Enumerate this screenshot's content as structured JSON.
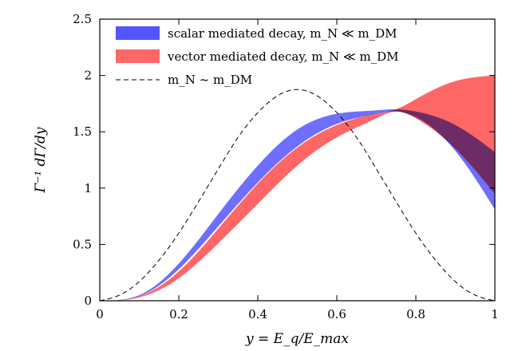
{
  "chart_data": {
    "type": "area",
    "xlabel": "y = E_q/E_max",
    "ylabel": "Γ⁻¹ dΓ/dy",
    "xlim": [
      0,
      1
    ],
    "ylim": [
      0,
      2.5
    ],
    "xticks": [
      0,
      0.2,
      0.4,
      0.6,
      0.8,
      1
    ],
    "xtick_labels": [
      "0",
      "0.2",
      "0.4",
      "0.6",
      "0.8",
      "1"
    ],
    "yticks": [
      0,
      0.5,
      1,
      1.5,
      2,
      2.5
    ],
    "ytick_labels": [
      "0",
      "0.5",
      "1",
      "1.5",
      "2",
      "2.5"
    ],
    "grid": false,
    "legend_position": "top-left",
    "x": [
      0,
      0.1,
      0.2,
      0.3,
      0.4,
      0.5,
      0.6,
      0.7,
      0.75,
      0.8,
      0.9,
      1.0
    ],
    "series": [
      {
        "name": "scalar mediated decay, m_N ≪ m_DM",
        "style": "band",
        "color": "#5555ff",
        "upper": [
          0,
          0.05,
          0.33,
          0.77,
          1.2,
          1.52,
          1.66,
          1.69,
          1.7,
          1.68,
          1.56,
          1.32
        ],
        "lower": [
          0,
          0.04,
          0.28,
          0.66,
          1.05,
          1.37,
          1.57,
          1.66,
          1.68,
          1.63,
          1.33,
          0.81
        ]
      },
      {
        "name": "vector mediated decay, m_N ≪ m_DM",
        "style": "band",
        "color": "#ff6666",
        "upper": [
          0,
          0.04,
          0.26,
          0.64,
          1.04,
          1.36,
          1.56,
          1.66,
          1.7,
          1.79,
          1.95,
          2.0
        ],
        "lower": [
          0,
          0.03,
          0.2,
          0.51,
          0.86,
          1.2,
          1.45,
          1.62,
          1.68,
          1.62,
          1.35,
          0.95
        ]
      },
      {
        "name": "m_N ~ m_DM",
        "style": "dashed",
        "color": "#000000",
        "x": [
          0,
          0.05,
          0.1,
          0.15,
          0.2,
          0.25,
          0.3,
          0.35,
          0.4,
          0.45,
          0.5,
          0.55,
          0.6,
          0.65,
          0.7,
          0.75,
          0.8,
          0.85,
          0.9,
          0.95,
          1.0
        ],
        "values": [
          0,
          0.05,
          0.17,
          0.36,
          0.6,
          0.88,
          1.17,
          1.45,
          1.67,
          1.82,
          1.875,
          1.82,
          1.67,
          1.45,
          1.17,
          0.88,
          0.6,
          0.36,
          0.17,
          0.05,
          0
        ]
      }
    ]
  }
}
